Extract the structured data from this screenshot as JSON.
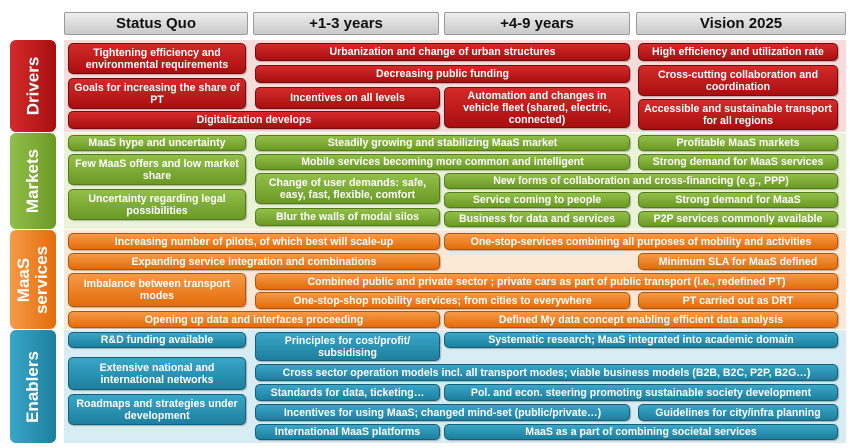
{
  "headers": [
    "Status Quo",
    "+1-3 years",
    "+4-9 years",
    "Vision 2025"
  ],
  "rows": {
    "drivers": "Drivers",
    "markets": "Markets",
    "maas": "MaaS services",
    "enablers": "Enablers"
  },
  "cells": {
    "d1": "Tightening efficiency and environmental requirements",
    "d2": "Urbanization and change of urban structures",
    "d3": "High efficiency and utilization rate",
    "d4": "Decreasing public funding",
    "d5": "Cross-cutting collaboration and coordination",
    "d6": "Goals for increasing the share of PT",
    "d7": "Incentives on all levels",
    "d8": "Automation and changes in vehicle fleet (shared, electric, connected)",
    "d9": "Accessible and sustainable transport for all regions",
    "d10": "Digitalization develops",
    "m1": "MaaS hype and uncertainty",
    "m2": "Steadily growing and stabilizing MaaS market",
    "m3": "Profitable MaaS markets",
    "m4": "Few MaaS offers and low market share",
    "m5": "Mobile services becoming more common and intelligent",
    "m6": "Strong demand for MaaS services",
    "m7": "Change of user demands: safe, easy, fast, flexible, comfort",
    "m8": "New forms of collaboration and cross-financing (e.g., PPP)",
    "m9": "Uncertainty regarding legal possibilities",
    "m10": "Service coming to people",
    "m11": "Strong demand for MaaS",
    "m12": "Blur the walls of modal silos",
    "m13": "Business for data and services",
    "m14": "P2P services commonly available",
    "s1": "Increasing number of pilots, of which best will scale-up",
    "s2": "One-stop-services combining all purposes of mobility and activities",
    "s3": "Expanding service integration and combinations",
    "s4": "Minimum SLA for MaaS defined",
    "s5": "Imbalance between transport modes",
    "s6": "Combined public and private sector ; private cars as part of public transport (i.e., redefined PT)",
    "s7": "One-stop-shop mobility services; from cities to everywhere",
    "s8": "PT carried out as DRT",
    "s9": "Opening up data and interfaces proceeding",
    "s10": "Defined My data concept enabling efficient data analysis",
    "e1": "R&D funding available",
    "e2": "Principles for cost/profit/ subsidising",
    "e3": "Systematic research; MaaS integrated into academic domain",
    "e4": "Extensive national and international networks",
    "e5": "Cross sector operation models incl. all transport modes; viable business models (B2B, B2C, P2P, B2G…)",
    "e6": "Standards for data, ticketing…",
    "e7": "Pol. and econ. steering promoting sustainable society development",
    "e8": "Roadmaps and strategies under development",
    "e9": "Incentives for using MaaS; changed mind-set (public/private…)",
    "e10": "Guidelines for city/infra planning",
    "e11": "International MaaS platforms",
    "e12": "MaaS as a part of combining societal services"
  },
  "colors": {
    "drivers": "#c0191b",
    "markets": "#7fae37",
    "maas": "#ee7d1f",
    "enablers": "#2593b5"
  }
}
